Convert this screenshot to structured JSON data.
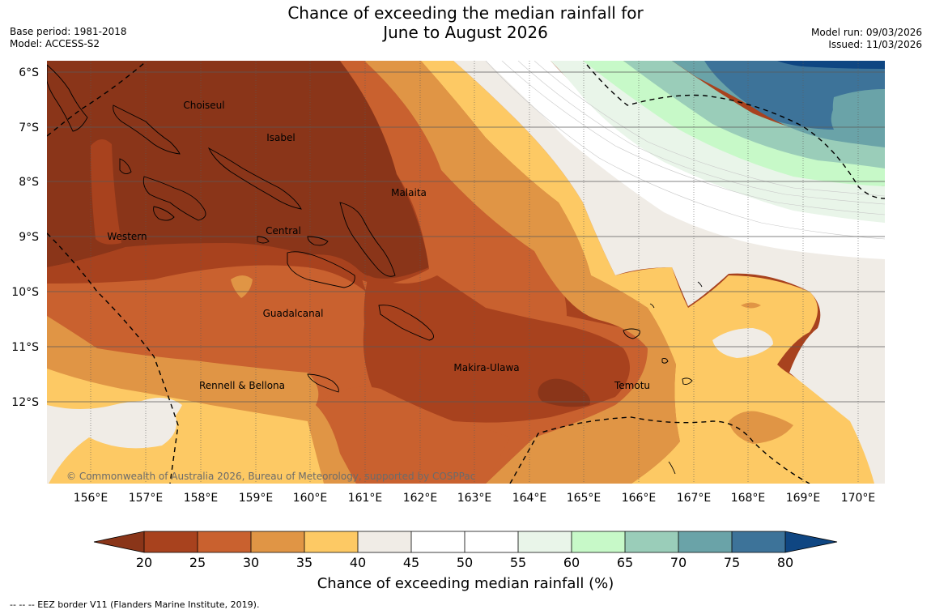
{
  "header": {
    "title_line1": "Chance of exceeding the median rainfall for",
    "title_line2": "June to August 2026",
    "base_period": "Base period: 1981-2018",
    "model": "Model: ACCESS-S2",
    "model_run": "Model run: 09/03/2026",
    "issued": "Issued: 11/03/2026"
  },
  "map": {
    "lat_labels": [
      "6°S",
      "7°S",
      "8°S",
      "9°S",
      "10°S",
      "11°S",
      "12°S"
    ],
    "lon_labels": [
      "156°E",
      "157°E",
      "158°E",
      "159°E",
      "160°E",
      "161°E",
      "162°E",
      "163°E",
      "164°E",
      "165°E",
      "166°E",
      "167°E",
      "168°E",
      "169°E",
      "170°E"
    ],
    "regions": {
      "choiseul": "Choiseul",
      "isabel": "Isabel",
      "malaita": "Malaita",
      "central": "Central",
      "western": "Western",
      "guadalcanal": "Guadalcanal",
      "makira_ulawa": "Makira-Ulawa",
      "temotu": "Temotu",
      "rennell_bellona": "Rennell & Bellona"
    },
    "copyright": "© Commonwealth of Australia 2026, Bureau of Meteorology, supported by COSPPac"
  },
  "colorbar": {
    "ticks": [
      "20",
      "25",
      "30",
      "35",
      "40",
      "45",
      "50",
      "55",
      "60",
      "65",
      "70",
      "75",
      "80"
    ],
    "title": "Chance of exceeding median rainfall (%)",
    "colors": {
      "under": "#8a3519",
      "b20_25": "#a8421e",
      "b25_30": "#c9612f",
      "b30_35": "#e09545",
      "b35_40": "#fdc964",
      "b40_45": "#f0ece6",
      "b45_50": "#ffffff",
      "b50_55": "#ffffff",
      "b55_60": "#e9f5e9",
      "b60_65": "#c7f9c8",
      "b65_70": "#9acdb9",
      "b70_75": "#6aa3a8",
      "b75_80": "#3d7399",
      "over": "#0f4682"
    }
  },
  "footnote": "--  --  -- EEZ border V11 (Flanders Marine Institute, 2019)."
}
